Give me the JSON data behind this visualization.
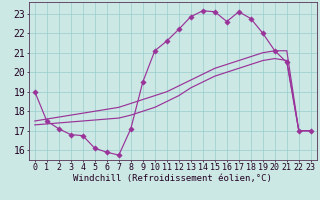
{
  "bg_color": "#cce8e4",
  "grid_color": "#99cccc",
  "line_color": "#993399",
  "xlim_min": -0.5,
  "xlim_max": 23.5,
  "ylim_min": 15.5,
  "ylim_max": 23.6,
  "xticks": [
    0,
    1,
    2,
    3,
    4,
    5,
    6,
    7,
    8,
    9,
    10,
    11,
    12,
    13,
    14,
    15,
    16,
    17,
    18,
    19,
    20,
    21,
    22,
    23
  ],
  "yticks": [
    16,
    17,
    18,
    19,
    20,
    21,
    22,
    23
  ],
  "xlabel": "Windchill (Refroidissement éolien,°C)",
  "line1_x": [
    0,
    1,
    2,
    3,
    4,
    5,
    6,
    7,
    8,
    9,
    10,
    11,
    12,
    13,
    14,
    15,
    16,
    17,
    18,
    19,
    20,
    21,
    22,
    23
  ],
  "line1_y": [
    19.0,
    17.5,
    17.1,
    16.8,
    16.75,
    16.1,
    15.9,
    15.75,
    17.1,
    19.5,
    21.1,
    21.6,
    22.2,
    22.85,
    23.15,
    23.1,
    22.6,
    23.1,
    22.75,
    22.0,
    21.1,
    20.5,
    17.0,
    17.0
  ],
  "line2_x": [
    0,
    1,
    2,
    3,
    4,
    5,
    6,
    7,
    8,
    9,
    10,
    11,
    12,
    13,
    14,
    15,
    16,
    17,
    18,
    19,
    20,
    21,
    22,
    23
  ],
  "line2_y": [
    17.5,
    17.6,
    17.7,
    17.8,
    17.9,
    18.0,
    18.1,
    18.2,
    18.4,
    18.6,
    18.8,
    19.0,
    19.3,
    19.6,
    19.9,
    20.2,
    20.4,
    20.6,
    20.8,
    21.0,
    21.1,
    21.1,
    17.0,
    17.0
  ],
  "line3_x": [
    0,
    1,
    2,
    3,
    4,
    5,
    6,
    7,
    8,
    9,
    10,
    11,
    12,
    13,
    14,
    15,
    16,
    17,
    18,
    19,
    20,
    21,
    22,
    23
  ],
  "line3_y": [
    17.3,
    17.35,
    17.4,
    17.45,
    17.5,
    17.55,
    17.6,
    17.65,
    17.8,
    18.0,
    18.2,
    18.5,
    18.8,
    19.2,
    19.5,
    19.8,
    20.0,
    20.2,
    20.4,
    20.6,
    20.7,
    20.6,
    17.0,
    17.0
  ],
  "lw": 0.85,
  "ms": 2.8,
  "tick_fs": 6,
  "label_fs": 6.5
}
